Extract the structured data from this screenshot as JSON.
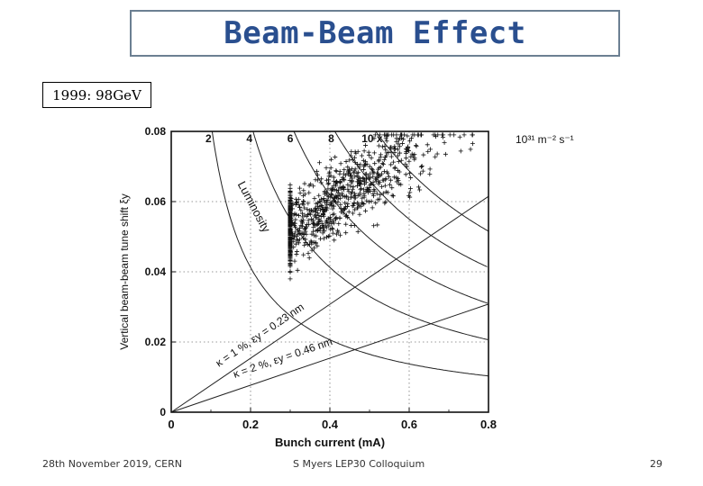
{
  "slide": {
    "title": "Beam-Beam Effect",
    "label": "1999: 98GeV",
    "footer_left": "28th November 2019,  CERN",
    "footer_center": "S Myers LEP30 Colloquium",
    "page_number": "29"
  },
  "chart_data": {
    "type": "scatter",
    "title": "",
    "xlabel": "Bunch current (mA)",
    "ylabel": "Vertical beam-beam tune shift ξy",
    "xlim": [
      0,
      0.8
    ],
    "ylim": [
      0,
      0.08
    ],
    "x_ticks": [
      0,
      0.2,
      0.4,
      0.6,
      0.8
    ],
    "x_tick_labels": [
      "0",
      "0.2",
      "0.4",
      "0.6",
      "0.8"
    ],
    "y_ticks": [
      0,
      0.02,
      0.04,
      0.06,
      0.08
    ],
    "y_tick_labels": [
      "0",
      "0.02",
      "0.04",
      "0.06",
      "0.08"
    ],
    "grid": true,
    "marker": "+",
    "luminosity_contours": {
      "levels": [
        2,
        4,
        6,
        8,
        10
      ],
      "labels": [
        "2",
        "4",
        "6",
        "8",
        "10 x"
      ],
      "unit_label": "10³¹ m⁻² s⁻¹",
      "curve_label": "Luminosity"
    },
    "reference_lines": [
      {
        "label": "κ = 1 %, εy = 0.23 nm",
        "x_end": 0.8,
        "y_end": 0.0615
      },
      {
        "label": "κ = 2 %, εy = 0.46 nm",
        "x_end": 0.8,
        "y_end": 0.0308
      }
    ],
    "scatter_summary": {
      "approx_points": 900,
      "x_range": [
        0.3,
        0.76
      ],
      "y_range": [
        0.028,
        0.078
      ],
      "trend": "positive correlation; dense core around x 0.4-0.7, y 0.045-0.072"
    }
  }
}
